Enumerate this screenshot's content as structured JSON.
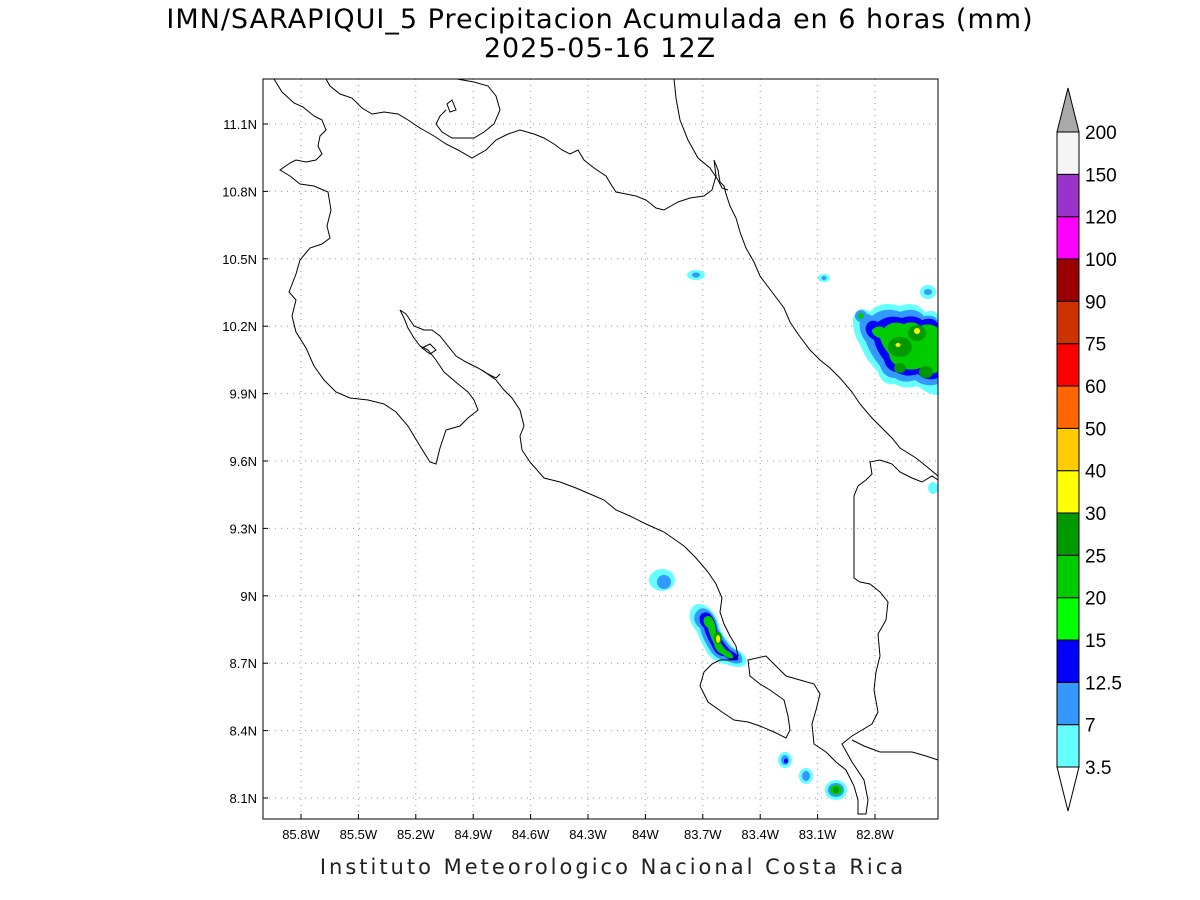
{
  "title": {
    "line1": "IMN/SARAPIQUI_5 Precipitacion Acumulada en 6 horas (mm)",
    "line2": "2025-05-16 12Z"
  },
  "footer": "Instituto Meteorologico Nacional Costa Rica",
  "axes": {
    "lon_ticks": [
      "85.8W",
      "85.5W",
      "85.2W",
      "84.9W",
      "84.6W",
      "84.3W",
      "84W",
      "83.7W",
      "83.4W",
      "83.1W",
      "82.8W"
    ],
    "lat_ticks": [
      "11.1N",
      "10.8N",
      "10.5N",
      "10.2N",
      "9.9N",
      "9.6N",
      "9.3N",
      "9N",
      "8.7N",
      "8.4N",
      "8.1N"
    ],
    "grid": "dotted"
  },
  "colorbar": {
    "labels": [
      "3.5",
      "7",
      "12.5",
      "15",
      "20",
      "25",
      "30",
      "40",
      "50",
      "60",
      "75",
      "90",
      "100",
      "120",
      "150",
      "200"
    ],
    "colors": [
      "#66ffff",
      "#3399ff",
      "#0000ff",
      "#00ff00",
      "#00cc00",
      "#009900",
      "#ffff00",
      "#ffcc00",
      "#ff6600",
      "#ff0000",
      "#cc3300",
      "#990000",
      "#ff00ff",
      "#9933cc",
      "#f5f5f5"
    ],
    "over_color": "#aaaaaa",
    "under_color": "#ffffff"
  },
  "map": {
    "region": "Costa Rica",
    "coast_color": "#000000"
  }
}
